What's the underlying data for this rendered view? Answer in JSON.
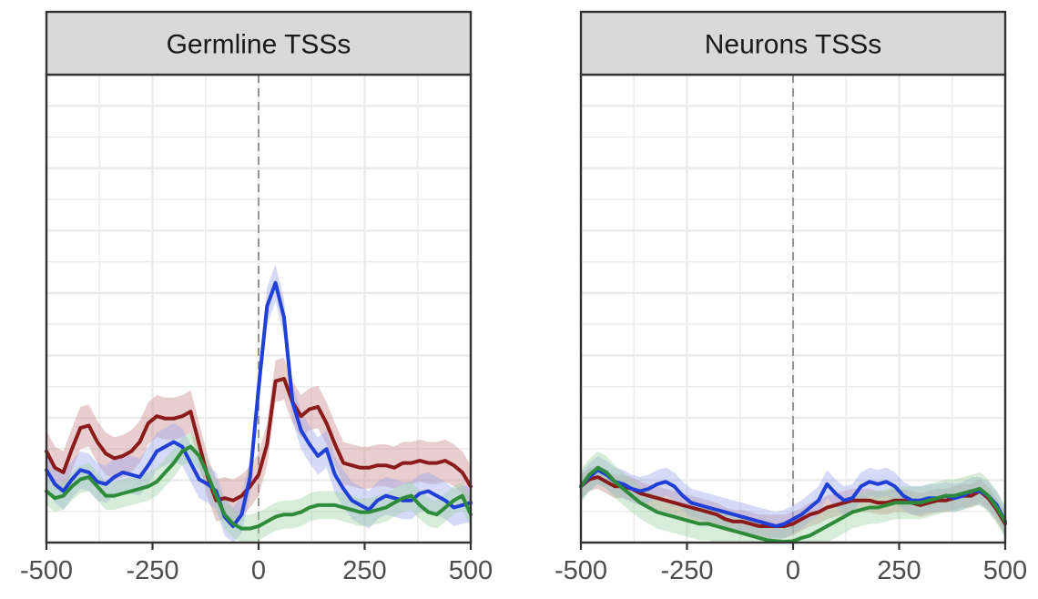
{
  "chart_data": [
    {
      "type": "line",
      "title": "Germline TSSs",
      "xlabel": "",
      "ylabel": "",
      "xlim": [
        -500,
        500
      ],
      "ylim": [
        0,
        1
      ],
      "x_ticks": [
        "-500",
        "-250",
        "0",
        "250",
        "500"
      ],
      "x_tick_values": [
        -500,
        -250,
        0,
        250,
        500
      ],
      "vline_x": 0,
      "grid": true,
      "series": [
        {
          "color": "#8B1A1A",
          "band_color": "#c98b8b",
          "x": [
            -500,
            -480,
            -460,
            -440,
            -420,
            -400,
            -380,
            -360,
            -340,
            -320,
            -300,
            -280,
            -260,
            -240,
            -220,
            -200,
            -180,
            -160,
            -140,
            -120,
            -100,
            -80,
            -60,
            -40,
            -20,
            0,
            20,
            40,
            60,
            80,
            100,
            120,
            140,
            160,
            180,
            200,
            220,
            240,
            260,
            280,
            300,
            320,
            340,
            360,
            380,
            400,
            420,
            440,
            460,
            480,
            500
          ],
          "y": [
            0.195,
            0.16,
            0.15,
            0.2,
            0.245,
            0.25,
            0.215,
            0.19,
            0.18,
            0.185,
            0.195,
            0.215,
            0.255,
            0.27,
            0.265,
            0.265,
            0.27,
            0.28,
            0.21,
            0.14,
            0.09,
            0.095,
            0.09,
            0.1,
            0.12,
            0.145,
            0.21,
            0.345,
            0.35,
            0.3,
            0.27,
            0.285,
            0.29,
            0.255,
            0.21,
            0.17,
            0.165,
            0.16,
            0.16,
            0.165,
            0.165,
            0.16,
            0.17,
            0.17,
            0.175,
            0.17,
            0.17,
            0.175,
            0.165,
            0.15,
            0.12
          ],
          "band": 0.045
        },
        {
          "color": "#1F3FD6",
          "band_color": "#9aa8ec",
          "x": [
            -500,
            -480,
            -460,
            -440,
            -420,
            -400,
            -380,
            -360,
            -340,
            -320,
            -300,
            -280,
            -260,
            -240,
            -220,
            -200,
            -180,
            -160,
            -140,
            -120,
            -100,
            -80,
            -60,
            -40,
            -20,
            0,
            20,
            40,
            60,
            80,
            100,
            120,
            140,
            160,
            180,
            200,
            220,
            240,
            260,
            280,
            300,
            320,
            340,
            360,
            380,
            400,
            420,
            440,
            460,
            480,
            500
          ],
          "y": [
            0.155,
            0.125,
            0.11,
            0.135,
            0.155,
            0.15,
            0.13,
            0.125,
            0.14,
            0.15,
            0.145,
            0.14,
            0.165,
            0.195,
            0.205,
            0.215,
            0.205,
            0.17,
            0.135,
            0.125,
            0.11,
            0.055,
            0.035,
            0.06,
            0.14,
            0.33,
            0.505,
            0.555,
            0.48,
            0.3,
            0.24,
            0.21,
            0.185,
            0.2,
            0.145,
            0.115,
            0.09,
            0.08,
            0.07,
            0.09,
            0.1,
            0.095,
            0.09,
            0.09,
            0.105,
            0.11,
            0.1,
            0.09,
            0.075,
            0.08,
            0.085
          ],
          "band": 0.04
        },
        {
          "color": "#2E8B3A",
          "band_color": "#9fd2a4",
          "x": [
            -500,
            -480,
            -460,
            -440,
            -420,
            -400,
            -380,
            -360,
            -340,
            -320,
            -300,
            -280,
            -260,
            -240,
            -220,
            -200,
            -180,
            -160,
            -140,
            -120,
            -100,
            -80,
            -60,
            -40,
            -20,
            0,
            20,
            40,
            60,
            80,
            100,
            120,
            140,
            160,
            180,
            200,
            220,
            240,
            260,
            280,
            300,
            320,
            340,
            360,
            380,
            400,
            420,
            440,
            460,
            480,
            500
          ],
          "y": [
            0.11,
            0.095,
            0.1,
            0.12,
            0.135,
            0.14,
            0.12,
            0.1,
            0.1,
            0.105,
            0.11,
            0.115,
            0.12,
            0.13,
            0.15,
            0.17,
            0.195,
            0.205,
            0.185,
            0.145,
            0.1,
            0.06,
            0.04,
            0.03,
            0.03,
            0.035,
            0.045,
            0.055,
            0.06,
            0.06,
            0.065,
            0.075,
            0.08,
            0.08,
            0.08,
            0.075,
            0.07,
            0.065,
            0.065,
            0.07,
            0.075,
            0.085,
            0.095,
            0.1,
            0.08,
            0.065,
            0.06,
            0.075,
            0.09,
            0.1,
            0.06
          ],
          "band": 0.03
        }
      ]
    },
    {
      "type": "line",
      "title": "Neurons TSSs",
      "xlabel": "",
      "ylabel": "",
      "xlim": [
        -500,
        500
      ],
      "ylim": [
        0,
        1
      ],
      "x_ticks": [
        "-500",
        "-250",
        "0",
        "250",
        "500"
      ],
      "x_tick_values": [
        -500,
        -250,
        0,
        250,
        500
      ],
      "vline_x": 0,
      "grid": true,
      "series": [
        {
          "color": "#8B1A1A",
          "band_color": "#c98b8b",
          "x": [
            -500,
            -480,
            -460,
            -440,
            -420,
            -400,
            -380,
            -360,
            -340,
            -320,
            -300,
            -280,
            -260,
            -240,
            -220,
            -200,
            -180,
            -160,
            -140,
            -120,
            -100,
            -80,
            -60,
            -40,
            -20,
            0,
            20,
            40,
            60,
            80,
            100,
            120,
            140,
            160,
            180,
            200,
            220,
            240,
            260,
            280,
            300,
            320,
            340,
            360,
            380,
            400,
            420,
            440,
            460,
            480,
            500
          ],
          "y": [
            0.12,
            0.135,
            0.14,
            0.13,
            0.12,
            0.12,
            0.115,
            0.105,
            0.1,
            0.095,
            0.09,
            0.085,
            0.08,
            0.075,
            0.07,
            0.065,
            0.06,
            0.05,
            0.045,
            0.045,
            0.04,
            0.035,
            0.035,
            0.035,
            0.035,
            0.04,
            0.05,
            0.06,
            0.065,
            0.075,
            0.08,
            0.085,
            0.09,
            0.09,
            0.09,
            0.085,
            0.085,
            0.09,
            0.09,
            0.085,
            0.08,
            0.085,
            0.09,
            0.09,
            0.095,
            0.1,
            0.1,
            0.11,
            0.095,
            0.07,
            0.04
          ],
          "band": 0.025
        },
        {
          "color": "#1F3FD6",
          "band_color": "#9aa8ec",
          "x": [
            -500,
            -480,
            -460,
            -440,
            -420,
            -400,
            -380,
            -360,
            -340,
            -320,
            -300,
            -280,
            -260,
            -240,
            -220,
            -200,
            -180,
            -160,
            -140,
            -120,
            -100,
            -80,
            -60,
            -40,
            -20,
            0,
            20,
            40,
            60,
            80,
            100,
            120,
            140,
            160,
            180,
            200,
            220,
            240,
            260,
            280,
            300,
            320,
            340,
            360,
            380,
            400,
            420,
            440,
            460,
            480,
            500
          ],
          "y": [
            0.12,
            0.14,
            0.155,
            0.145,
            0.13,
            0.125,
            0.115,
            0.11,
            0.115,
            0.125,
            0.13,
            0.12,
            0.1,
            0.085,
            0.08,
            0.075,
            0.07,
            0.065,
            0.06,
            0.055,
            0.05,
            0.045,
            0.04,
            0.035,
            0.04,
            0.05,
            0.06,
            0.075,
            0.09,
            0.125,
            0.105,
            0.09,
            0.095,
            0.12,
            0.13,
            0.125,
            0.13,
            0.12,
            0.1,
            0.09,
            0.09,
            0.095,
            0.095,
            0.1,
            0.095,
            0.1,
            0.11,
            0.11,
            0.1,
            0.08,
            0.045
          ],
          "band": 0.03
        },
        {
          "color": "#2E8B3A",
          "band_color": "#9fd2a4",
          "x": [
            -500,
            -480,
            -460,
            -440,
            -420,
            -400,
            -380,
            -360,
            -340,
            -320,
            -300,
            -280,
            -260,
            -240,
            -220,
            -200,
            -180,
            -160,
            -140,
            -120,
            -100,
            -80,
            -60,
            -40,
            -20,
            0,
            20,
            40,
            60,
            80,
            100,
            120,
            140,
            160,
            180,
            200,
            220,
            240,
            260,
            280,
            300,
            320,
            340,
            360,
            380,
            400,
            420,
            440,
            460,
            480,
            500
          ],
          "y": [
            0.12,
            0.145,
            0.16,
            0.15,
            0.13,
            0.115,
            0.1,
            0.085,
            0.075,
            0.065,
            0.06,
            0.055,
            0.05,
            0.045,
            0.04,
            0.04,
            0.035,
            0.03,
            0.025,
            0.02,
            0.015,
            0.01,
            0.005,
            0.003,
            0.002,
            0.003,
            0.01,
            0.015,
            0.025,
            0.035,
            0.045,
            0.055,
            0.065,
            0.07,
            0.075,
            0.075,
            0.08,
            0.085,
            0.085,
            0.085,
            0.085,
            0.09,
            0.095,
            0.1,
            0.1,
            0.105,
            0.11,
            0.115,
            0.1,
            0.075,
            0.045
          ],
          "band": 0.035
        }
      ]
    }
  ]
}
